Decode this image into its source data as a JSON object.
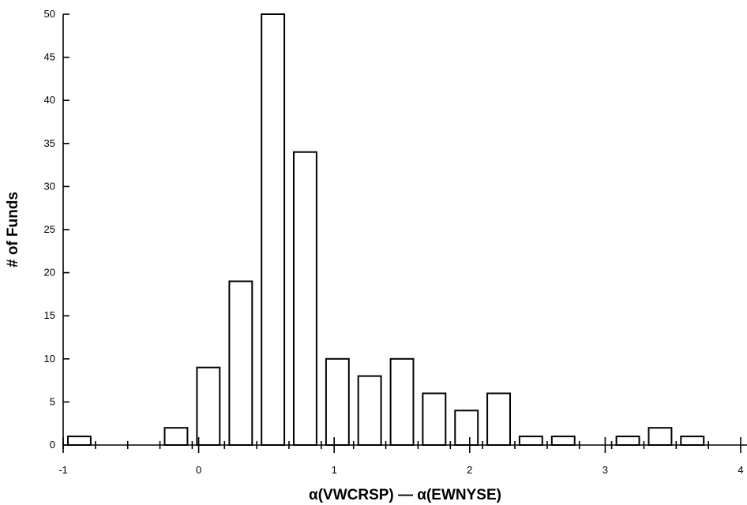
{
  "chart_data": {
    "type": "bar",
    "title": "",
    "xlabel": "α(VWCRSP) — α(EWNYSE)",
    "ylabel": "# of Funds",
    "xlim": [
      -1,
      4
    ],
    "ylim": [
      0,
      50
    ],
    "x_ticks": [
      "-1",
      "0",
      "1",
      "2",
      "3",
      "4"
    ],
    "y_ticks": [
      "0",
      "5",
      "10",
      "15",
      "20",
      "25",
      "30",
      "35",
      "40",
      "45",
      "50"
    ],
    "bin_width": 0.2381,
    "bins": [
      {
        "x": -0.881,
        "value": 1
      },
      {
        "x": -0.643,
        "value": 0
      },
      {
        "x": -0.405,
        "value": 0
      },
      {
        "x": -0.167,
        "value": 2
      },
      {
        "x": 0.071,
        "value": 9
      },
      {
        "x": 0.31,
        "value": 19
      },
      {
        "x": 0.548,
        "value": 50
      },
      {
        "x": 0.786,
        "value": 34
      },
      {
        "x": 1.024,
        "value": 10
      },
      {
        "x": 1.262,
        "value": 8
      },
      {
        "x": 1.5,
        "value": 10
      },
      {
        "x": 1.738,
        "value": 6
      },
      {
        "x": 1.976,
        "value": 4
      },
      {
        "x": 2.214,
        "value": 6
      },
      {
        "x": 2.452,
        "value": 1
      },
      {
        "x": 2.69,
        "value": 1
      },
      {
        "x": 2.929,
        "value": 0
      },
      {
        "x": 3.167,
        "value": 1
      },
      {
        "x": 3.405,
        "value": 2
      },
      {
        "x": 3.643,
        "value": 1
      }
    ]
  }
}
